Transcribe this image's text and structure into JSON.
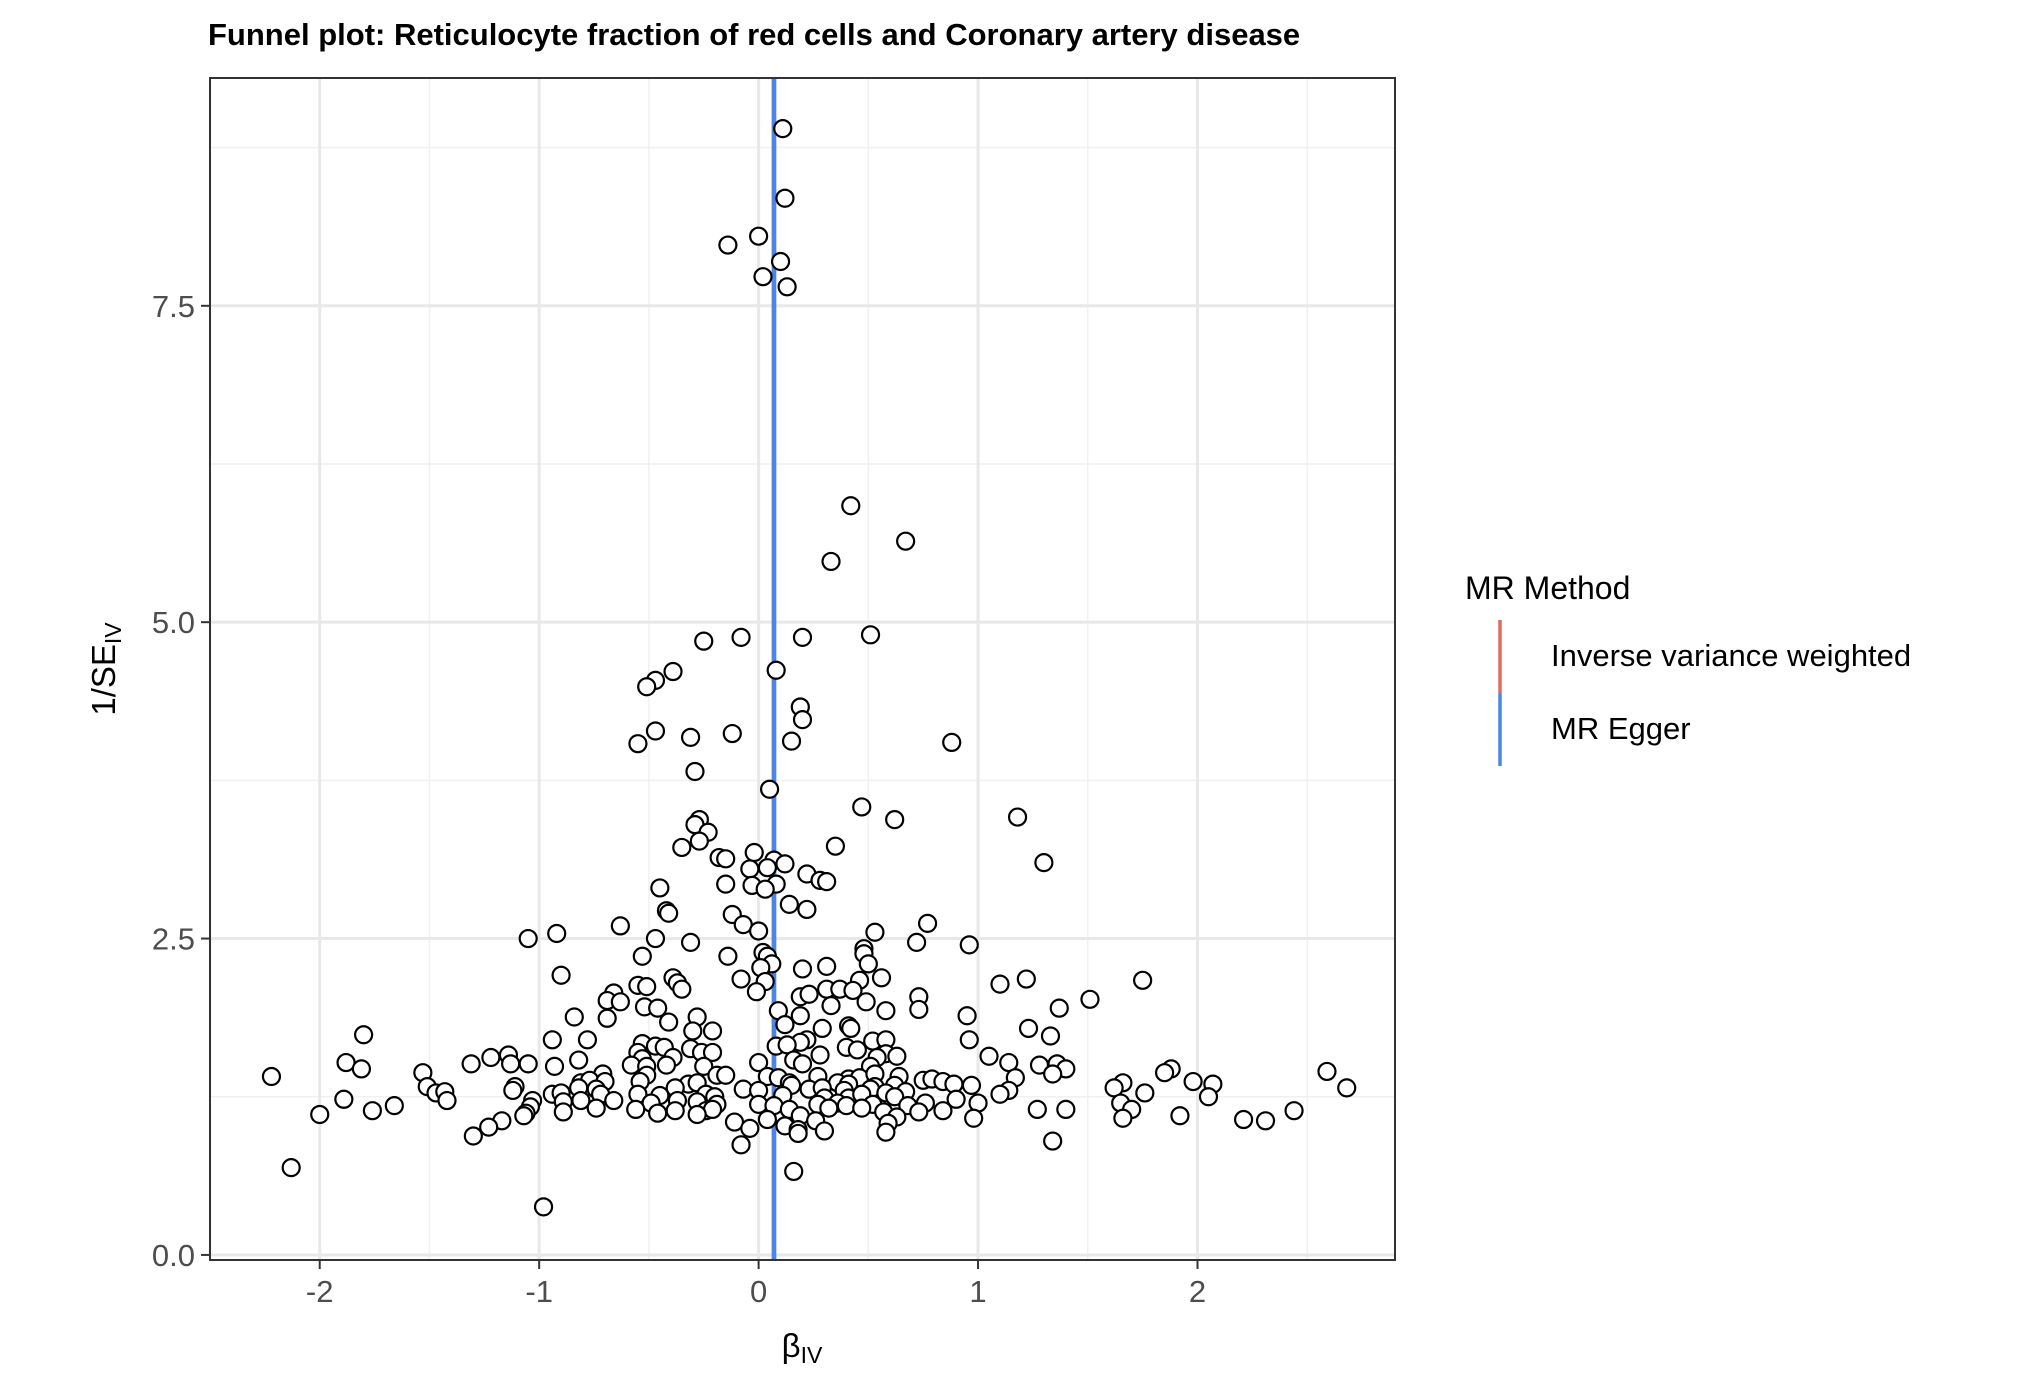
{
  "chart_data": {
    "type": "scatter",
    "title": "Funnel plot: Reticulocyte fraction of red cells and Coronary artery disease",
    "xlabel": {
      "main": "β",
      "sub": "IV"
    },
    "ylabel": {
      "main": "1/SE",
      "sub": "IV"
    },
    "xlim": [
      -2.5,
      2.9
    ],
    "ylim": [
      -0.04,
      9.3
    ],
    "x_ticks": [
      -2,
      -1,
      0,
      1,
      2
    ],
    "x_tick_labels": [
      "-2",
      "-1",
      "0",
      "1",
      "2"
    ],
    "y_ticks": [
      0,
      2.5,
      5,
      7.5
    ],
    "y_tick_labels": [
      "0.0",
      "2.5",
      "5.0",
      "7.5"
    ],
    "grid": true,
    "legend": {
      "title": "MR Method",
      "position": "right",
      "entries": [
        {
          "name": "Inverse variance weighted",
          "color": "#e06c5c"
        },
        {
          "name": "MR Egger",
          "color": "#4a86e8"
        }
      ]
    },
    "vlines": [
      {
        "method": "Inverse variance weighted",
        "x": 0.07,
        "color": "#e06c5c"
      },
      {
        "method": "MR Egger",
        "x": 0.07,
        "color": "#4a86e8"
      }
    ],
    "points": [
      [
        0.11,
        8.9
      ],
      [
        0.12,
        8.35
      ],
      [
        -0.14,
        7.98
      ],
      [
        0.0,
        8.05
      ],
      [
        0.1,
        7.85
      ],
      [
        0.02,
        7.73
      ],
      [
        0.13,
        7.65
      ],
      [
        0.42,
        5.92
      ],
      [
        0.67,
        5.64
      ],
      [
        0.33,
        5.48
      ],
      [
        -0.25,
        4.85
      ],
      [
        -0.08,
        4.88
      ],
      [
        0.2,
        4.88
      ],
      [
        0.51,
        4.9
      ],
      [
        0.08,
        4.62
      ],
      [
        -0.39,
        4.61
      ],
      [
        -0.47,
        4.54
      ],
      [
        -0.51,
        4.49
      ],
      [
        0.19,
        4.33
      ],
      [
        0.2,
        4.23
      ],
      [
        -0.47,
        4.14
      ],
      [
        -0.12,
        4.12
      ],
      [
        -0.31,
        4.09
      ],
      [
        0.15,
        4.06
      ],
      [
        0.88,
        4.05
      ],
      [
        -0.55,
        4.04
      ],
      [
        -0.29,
        3.82
      ],
      [
        0.05,
        3.68
      ],
      [
        0.47,
        3.54
      ],
      [
        1.18,
        3.46
      ],
      [
        0.62,
        3.44
      ],
      [
        -0.27,
        3.44
      ],
      [
        -0.29,
        3.4
      ],
      [
        -0.23,
        3.34
      ],
      [
        -0.35,
        3.22
      ],
      [
        0.35,
        3.23
      ],
      [
        -0.27,
        3.27
      ],
      [
        -0.02,
        3.18
      ],
      [
        -0.18,
        3.14
      ],
      [
        -0.15,
        3.13
      ],
      [
        0.07,
        3.12
      ],
      [
        0.12,
        3.09
      ],
      [
        1.3,
        3.1
      ],
      [
        -0.04,
        3.05
      ],
      [
        0.04,
        3.06
      ],
      [
        0.22,
        3.01
      ],
      [
        0.28,
        2.96
      ],
      [
        0.31,
        2.95
      ],
      [
        0.08,
        2.93
      ],
      [
        -0.15,
        2.93
      ],
      [
        -0.03,
        2.92
      ],
      [
        -0.45,
        2.9
      ],
      [
        0.03,
        2.89
      ],
      [
        0.14,
        2.77
      ],
      [
        0.22,
        2.73
      ],
      [
        -0.42,
        2.72
      ],
      [
        -0.41,
        2.7
      ],
      [
        -0.12,
        2.69
      ],
      [
        -0.07,
        2.61
      ],
      [
        0.77,
        2.62
      ],
      [
        -0.63,
        2.6
      ],
      [
        0.0,
        2.56
      ],
      [
        0.53,
        2.55
      ],
      [
        -0.92,
        2.54
      ],
      [
        -1.05,
        2.5
      ],
      [
        -0.31,
        2.47
      ],
      [
        -0.47,
        2.5
      ],
      [
        0.72,
        2.47
      ],
      [
        0.96,
        2.45
      ],
      [
        0.48,
        2.42
      ],
      [
        0.48,
        2.38
      ],
      [
        0.02,
        2.39
      ],
      [
        0.04,
        2.36
      ],
      [
        -0.53,
        2.36
      ],
      [
        -0.14,
        2.36
      ],
      [
        0.06,
        2.3
      ],
      [
        0.31,
        2.28
      ],
      [
        0.5,
        2.3
      ],
      [
        0.01,
        2.27
      ],
      [
        0.2,
        2.26
      ],
      [
        -0.9,
        2.21
      ],
      [
        0.56,
        2.19
      ],
      [
        -0.39,
        2.19
      ],
      [
        -0.37,
        2.15
      ],
      [
        -0.08,
        2.18
      ],
      [
        0.46,
        2.17
      ],
      [
        0.03,
        2.16
      ],
      [
        1.22,
        2.18
      ],
      [
        1.75,
        2.17
      ],
      [
        1.1,
        2.14
      ],
      [
        -0.55,
        2.13
      ],
      [
        -0.51,
        2.12
      ],
      [
        -0.66,
        2.07
      ],
      [
        0.31,
        2.1
      ],
      [
        0.37,
        2.1
      ],
      [
        0.43,
        2.09
      ],
      [
        -0.01,
        2.08
      ],
      [
        -0.35,
        2.1
      ],
      [
        0.19,
        2.04
      ],
      [
        0.23,
        2.06
      ],
      [
        0.73,
        2.04
      ],
      [
        1.51,
        2.02
      ],
      [
        -0.69,
        2.01
      ],
      [
        -0.63,
        2.0
      ],
      [
        0.49,
        2.0
      ],
      [
        0.33,
        1.97
      ],
      [
        -0.52,
        1.96
      ],
      [
        -0.46,
        1.95
      ],
      [
        0.09,
        1.93
      ],
      [
        1.37,
        1.95
      ],
      [
        0.58,
        1.93
      ],
      [
        0.73,
        1.94
      ],
      [
        -0.28,
        1.88
      ],
      [
        0.19,
        1.89
      ],
      [
        -0.84,
        1.88
      ],
      [
        -0.69,
        1.87
      ],
      [
        0.95,
        1.89
      ],
      [
        -0.41,
        1.84
      ],
      [
        0.12,
        1.82
      ],
      [
        0.29,
        1.79
      ],
      [
        0.41,
        1.81
      ],
      [
        0.42,
        1.79
      ],
      [
        1.23,
        1.79
      ],
      [
        -0.3,
        1.77
      ],
      [
        -0.21,
        1.77
      ],
      [
        -1.8,
        1.74
      ],
      [
        -0.94,
        1.7
      ],
      [
        -0.78,
        1.7
      ],
      [
        0.22,
        1.7
      ],
      [
        0.19,
        1.68
      ],
      [
        0.52,
        1.69
      ],
      [
        0.58,
        1.7
      ],
      [
        0.96,
        1.7
      ],
      [
        1.33,
        1.73
      ],
      [
        -0.53,
        1.67
      ],
      [
        -0.47,
        1.65
      ],
      [
        -0.31,
        1.63
      ],
      [
        -0.43,
        1.64
      ],
      [
        0.08,
        1.65
      ],
      [
        0.13,
        1.66
      ],
      [
        0.4,
        1.64
      ],
      [
        0.45,
        1.62
      ],
      [
        -0.26,
        1.6
      ],
      [
        -0.21,
        1.6
      ],
      [
        -0.55,
        1.6
      ],
      [
        0.58,
        1.59
      ],
      [
        0.28,
        1.58
      ],
      [
        1.05,
        1.57
      ],
      [
        0.63,
        1.57
      ],
      [
        -1.14,
        1.58
      ],
      [
        -1.22,
        1.56
      ],
      [
        -0.82,
        1.54
      ],
      [
        -0.39,
        1.56
      ],
      [
        -0.53,
        1.55
      ],
      [
        0.16,
        1.54
      ],
      [
        0.54,
        1.56
      ],
      [
        -1.05,
        1.51
      ],
      [
        -1.13,
        1.51
      ],
      [
        -1.31,
        1.51
      ],
      [
        -1.88,
        1.52
      ],
      [
        -0.93,
        1.49
      ],
      [
        -0.58,
        1.5
      ],
      [
        -0.51,
        1.49
      ],
      [
        -0.42,
        1.5
      ],
      [
        -0.25,
        1.49
      ],
      [
        0.0,
        1.52
      ],
      [
        0.2,
        1.51
      ],
      [
        0.51,
        1.49
      ],
      [
        1.14,
        1.52
      ],
      [
        1.28,
        1.5
      ],
      [
        1.36,
        1.51
      ],
      [
        -1.81,
        1.47
      ],
      [
        1.4,
        1.47
      ],
      [
        1.88,
        1.47
      ],
      [
        -1.53,
        1.44
      ],
      [
        -0.71,
        1.43
      ],
      [
        -0.51,
        1.42
      ],
      [
        -0.19,
        1.42
      ],
      [
        -0.15,
        1.42
      ],
      [
        0.04,
        1.41
      ],
      [
        0.09,
        1.4
      ],
      [
        0.27,
        1.41
      ],
      [
        0.41,
        1.39
      ],
      [
        0.46,
        1.4
      ],
      [
        0.53,
        1.43
      ],
      [
        0.64,
        1.41
      ],
      [
        0.75,
        1.38
      ],
      [
        0.79,
        1.39
      ],
      [
        0.84,
        1.37
      ],
      [
        1.17,
        1.4
      ],
      [
        1.34,
        1.43
      ],
      [
        1.85,
        1.44
      ],
      [
        -2.22,
        1.41
      ],
      [
        -0.81,
        1.36
      ],
      [
        -0.77,
        1.38
      ],
      [
        -0.7,
        1.37
      ],
      [
        -0.54,
        1.37
      ],
      [
        -0.32,
        1.35
      ],
      [
        -0.28,
        1.36
      ],
      [
        0.14,
        1.36
      ],
      [
        0.15,
        1.34
      ],
      [
        0.36,
        1.36
      ],
      [
        0.41,
        1.35
      ],
      [
        0.53,
        1.33
      ],
      [
        0.62,
        1.34
      ],
      [
        0.89,
        1.35
      ],
      [
        0.97,
        1.34
      ],
      [
        1.66,
        1.36
      ],
      [
        1.98,
        1.37
      ],
      [
        2.07,
        1.35
      ],
      [
        2.59,
        1.45
      ],
      [
        2.68,
        1.32
      ],
      [
        -1.51,
        1.33
      ],
      [
        -1.11,
        1.33
      ],
      [
        -0.82,
        1.32
      ],
      [
        -0.74,
        1.31
      ],
      [
        -0.38,
        1.32
      ],
      [
        -0.07,
        1.31
      ],
      [
        0.0,
        1.3
      ],
      [
        0.23,
        1.31
      ],
      [
        0.29,
        1.32
      ],
      [
        0.39,
        1.3
      ],
      [
        0.51,
        1.31
      ],
      [
        0.58,
        1.28
      ],
      [
        0.67,
        1.29
      ],
      [
        1.14,
        1.3
      ],
      [
        1.62,
        1.32
      ],
      [
        1.76,
        1.28
      ],
      [
        -1.47,
        1.28
      ],
      [
        -1.43,
        1.29
      ],
      [
        -1.12,
        1.3
      ],
      [
        -0.94,
        1.27
      ],
      [
        -0.9,
        1.28
      ],
      [
        -0.72,
        1.27
      ],
      [
        -0.55,
        1.27
      ],
      [
        -0.45,
        1.26
      ],
      [
        -0.24,
        1.27
      ],
      [
        -0.2,
        1.25
      ],
      [
        0.11,
        1.26
      ],
      [
        0.3,
        1.24
      ],
      [
        0.41,
        1.24
      ],
      [
        0.47,
        1.27
      ],
      [
        0.62,
        1.25
      ],
      [
        0.9,
        1.23
      ],
      [
        1.1,
        1.27
      ],
      [
        2.05,
        1.25
      ],
      [
        -1.89,
        1.23
      ],
      [
        -1.42,
        1.22
      ],
      [
        -1.03,
        1.22
      ],
      [
        -0.89,
        1.21
      ],
      [
        -0.81,
        1.22
      ],
      [
        -0.66,
        1.22
      ],
      [
        -0.49,
        1.2
      ],
      [
        -0.37,
        1.22
      ],
      [
        -0.28,
        1.21
      ],
      [
        -0.19,
        1.19
      ],
      [
        0.0,
        1.19
      ],
      [
        0.07,
        1.18
      ],
      [
        0.27,
        1.19
      ],
      [
        0.36,
        1.2
      ],
      [
        0.4,
        1.18
      ],
      [
        0.52,
        1.19
      ],
      [
        0.68,
        1.18
      ],
      [
        0.76,
        1.2
      ],
      [
        1.0,
        1.2
      ],
      [
        1.65,
        1.2
      ],
      [
        -1.66,
        1.18
      ],
      [
        -1.04,
        1.17
      ],
      [
        -0.74,
        1.16
      ],
      [
        -0.56,
        1.15
      ],
      [
        -0.38,
        1.14
      ],
      [
        -0.24,
        1.14
      ],
      [
        -0.21,
        1.15
      ],
      [
        0.14,
        1.15
      ],
      [
        0.32,
        1.16
      ],
      [
        0.47,
        1.16
      ],
      [
        0.57,
        1.13
      ],
      [
        0.73,
        1.13
      ],
      [
        0.84,
        1.14
      ],
      [
        1.27,
        1.15
      ],
      [
        1.4,
        1.15
      ],
      [
        1.7,
        1.15
      ],
      [
        2.44,
        1.14
      ],
      [
        -2.0,
        1.11
      ],
      [
        -1.76,
        1.14
      ],
      [
        -1.06,
        1.12
      ],
      [
        -0.89,
        1.13
      ],
      [
        -0.46,
        1.12
      ],
      [
        -0.28,
        1.11
      ],
      [
        0.19,
        1.1
      ],
      [
        0.63,
        1.09
      ],
      [
        0.98,
        1.08
      ],
      [
        1.66,
        1.08
      ],
      [
        1.92,
        1.1
      ],
      [
        2.21,
        1.07
      ],
      [
        2.31,
        1.06
      ],
      [
        -1.17,
        1.06
      ],
      [
        -1.07,
        1.1
      ],
      [
        -0.11,
        1.05
      ],
      [
        0.04,
        1.07
      ],
      [
        0.26,
        1.06
      ],
      [
        0.59,
        1.04
      ],
      [
        -1.23,
        1.01
      ],
      [
        -0.04,
        1.0
      ],
      [
        0.12,
        1.02
      ],
      [
        0.18,
        0.99
      ],
      [
        0.3,
        0.98
      ],
      [
        -1.3,
        0.94
      ],
      [
        0.18,
        0.96
      ],
      [
        0.58,
        0.97
      ],
      [
        1.34,
        0.9
      ],
      [
        -0.08,
        0.87
      ],
      [
        0.16,
        0.66
      ],
      [
        -2.13,
        0.69
      ],
      [
        -0.98,
        0.38
      ]
    ]
  }
}
